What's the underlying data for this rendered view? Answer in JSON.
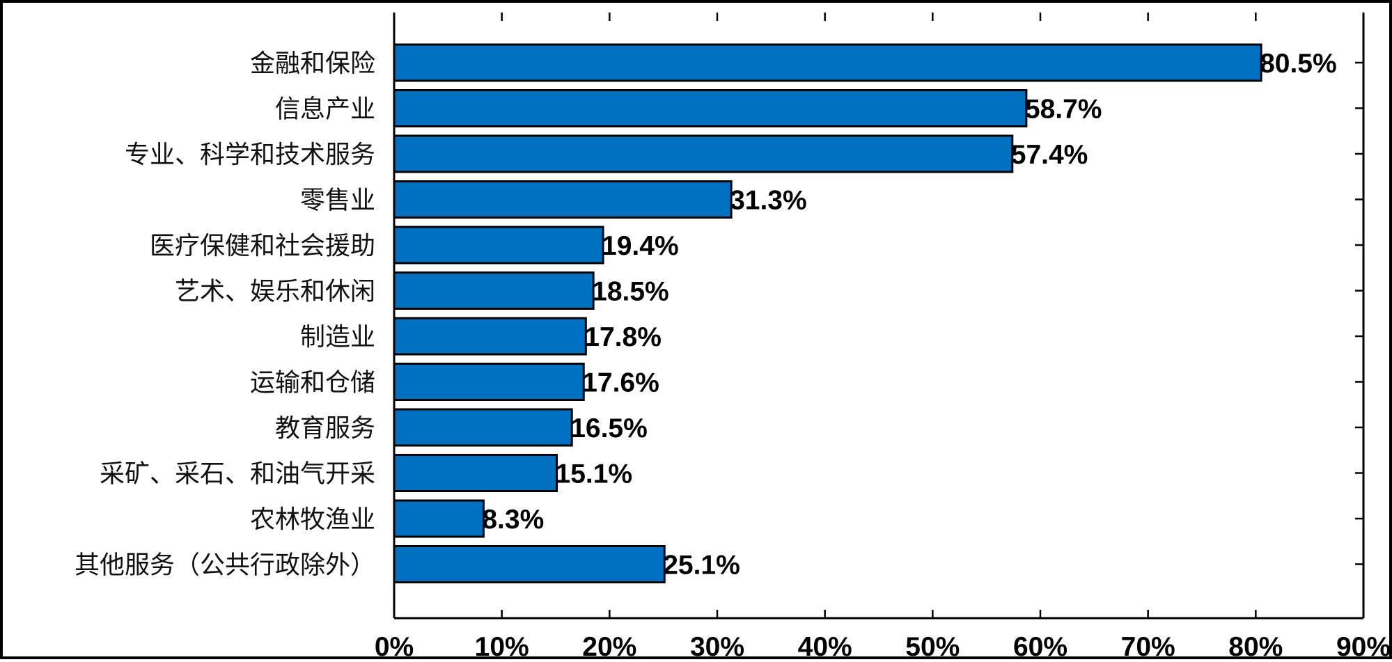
{
  "chart_data": {
    "type": "bar",
    "orientation": "horizontal",
    "categories": [
      "金融和保险",
      "信息产业",
      "专业、科学和技术服务",
      "零售业",
      "医疗保健和社会援助",
      "艺术、娱乐和休闲",
      "制造业",
      "运输和仓储",
      "教育服务",
      "采矿、采石、和油气开采",
      "农林牧渔业",
      "其他服务（公共行政除外）"
    ],
    "values": [
      80.5,
      58.7,
      57.4,
      31.3,
      19.4,
      18.5,
      17.8,
      17.6,
      16.5,
      15.1,
      8.3,
      25.1
    ],
    "value_labels": [
      "80.5%",
      "58.7%",
      "57.4%",
      "31.3%",
      "19.4%",
      "18.5%",
      "17.8%",
      "17.6%",
      "16.5%",
      "15.1%",
      "8.3%",
      "25.1%"
    ],
    "xlim": [
      0,
      90
    ],
    "x_ticks": [
      0,
      10,
      20,
      30,
      40,
      50,
      60,
      70,
      80,
      90
    ],
    "x_tick_labels": [
      "0%",
      "10%",
      "20%",
      "30%",
      "40%",
      "50%",
      "60%",
      "70%",
      "80%",
      "90%"
    ],
    "title": "",
    "xlabel": "",
    "ylabel": "",
    "grid": false,
    "legend": "none",
    "bar_color": "#0070c0",
    "bar_edge_color": "#000000"
  }
}
